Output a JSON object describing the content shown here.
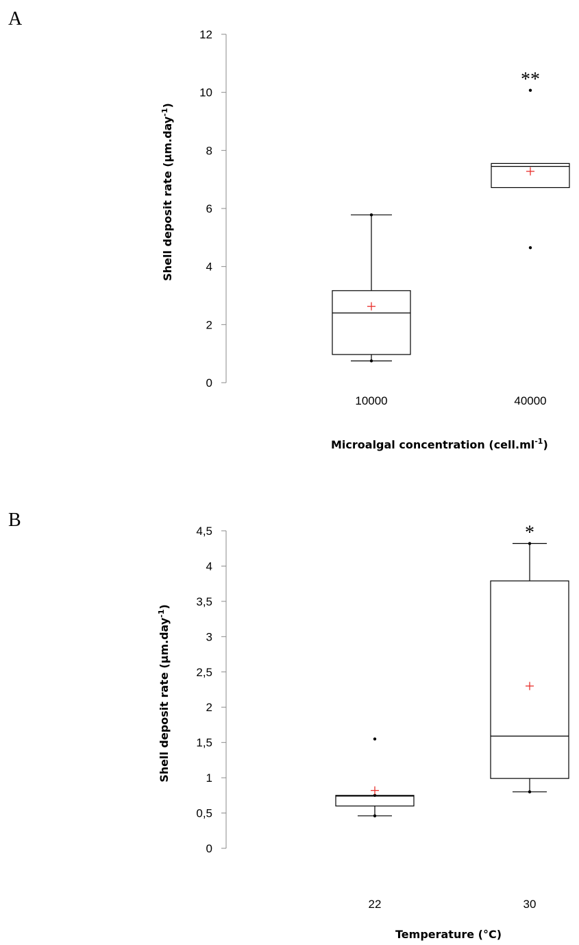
{
  "chart_data": [
    {
      "panel": "A",
      "type": "box",
      "categories": [
        "10000",
        "40000"
      ],
      "ylabel": "Shell deposit rate (µm.day",
      "ylabel_sup": "-1",
      "ylabel_end": ")",
      "xlabel": "Microalgal concentration (cell.ml",
      "xlabel_sup": "-1",
      "xlabel_end": ")",
      "ylim": [
        0,
        12
      ],
      "yticks": [
        0,
        2,
        4,
        6,
        8,
        10,
        12
      ],
      "ytick_labels": [
        "0",
        "2",
        "4",
        "6",
        "8",
        "10",
        "12"
      ],
      "grid": false,
      "boxes": [
        {
          "category": "10000",
          "min": 0.75,
          "q1": 0.97,
          "median": 2.4,
          "q3": 3.17,
          "max": 5.78,
          "mean": 2.63,
          "outliers": [],
          "significance": ""
        },
        {
          "category": "40000",
          "min": 4.65,
          "q1": 6.72,
          "median": 7.45,
          "q3": 7.55,
          "max": 10.07,
          "mean": 7.28,
          "outliers": [
            10.07,
            4.65
          ],
          "whiskers": false,
          "significance": "**"
        }
      ]
    },
    {
      "panel": "B",
      "type": "box",
      "categories": [
        "22",
        "30"
      ],
      "ylabel": "Shell deposit rate (µm.day",
      "ylabel_sup": "-1",
      "ylabel_end": ")",
      "xlabel": "Temperature (°C)",
      "ylim": [
        0,
        4.5
      ],
      "yticks": [
        0,
        0.5,
        1,
        1.5,
        2,
        2.5,
        3,
        3.5,
        4,
        4.5
      ],
      "ytick_labels": [
        "0",
        "0,5",
        "1",
        "1,5",
        "2",
        "2,5",
        "3",
        "3,5",
        "4",
        "4,5"
      ],
      "grid": false,
      "boxes": [
        {
          "category": "22",
          "min": 0.46,
          "q1": 0.6,
          "median": 0.74,
          "q3": 0.75,
          "max": 0.75,
          "mean": 0.82,
          "outliers": [
            1.55
          ],
          "significance": ""
        },
        {
          "category": "30",
          "min": 0.8,
          "q1": 0.99,
          "median": 1.59,
          "q3": 3.79,
          "max": 4.32,
          "mean": 2.3,
          "outliers": [],
          "significance": "*"
        }
      ]
    }
  ],
  "colors": {
    "box": "#000000",
    "mean_marker": "#e8312d",
    "axis": "#8a8a8a"
  }
}
